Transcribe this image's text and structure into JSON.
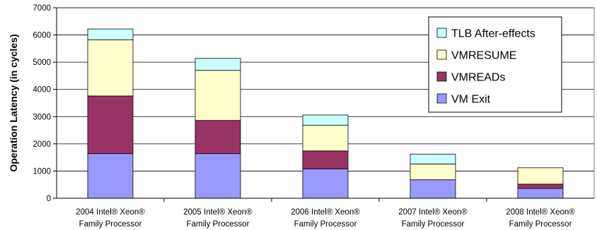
{
  "chart_data": {
    "type": "bar",
    "stacked": true,
    "title": "",
    "xlabel": "",
    "ylabel": "Operation Latency (in cycles)",
    "ylim": [
      0,
      7000
    ],
    "yticks": [
      "0",
      "1000",
      "2000",
      "3000",
      "4000",
      "5000",
      "6000",
      "7000"
    ],
    "grid": true,
    "legend_position": "top-right",
    "categories": [
      [
        "2004 Intel® Xeon®",
        "Family Processor"
      ],
      [
        "2005 Intel® Xeon®",
        "Family Processor"
      ],
      [
        "2006 Intel® Xeon®",
        "Family Processor"
      ],
      [
        "2007 Intel® Xeon®",
        "Family Processor"
      ],
      [
        "2008 Intel® Xeon®",
        "Family Processor"
      ]
    ],
    "series": [
      {
        "name": "VM Exit",
        "color": "#9999ff",
        "values": [
          1640,
          1640,
          1080,
          680,
          360
        ]
      },
      {
        "name": "VMREADs",
        "color": "#993366",
        "values": [
          2120,
          1220,
          660,
          0,
          160
        ]
      },
      {
        "name": "VMRESUME",
        "color": "#ffffcc",
        "values": [
          2060,
          1840,
          940,
          580,
          600
        ]
      },
      {
        "name": "TLB After-effects",
        "color": "#ccffff",
        "values": [
          400,
          440,
          380,
          360,
          0
        ]
      }
    ],
    "legend_order": [
      "TLB After-effects",
      "VMRESUME",
      "VMREADs",
      "VM Exit"
    ]
  }
}
